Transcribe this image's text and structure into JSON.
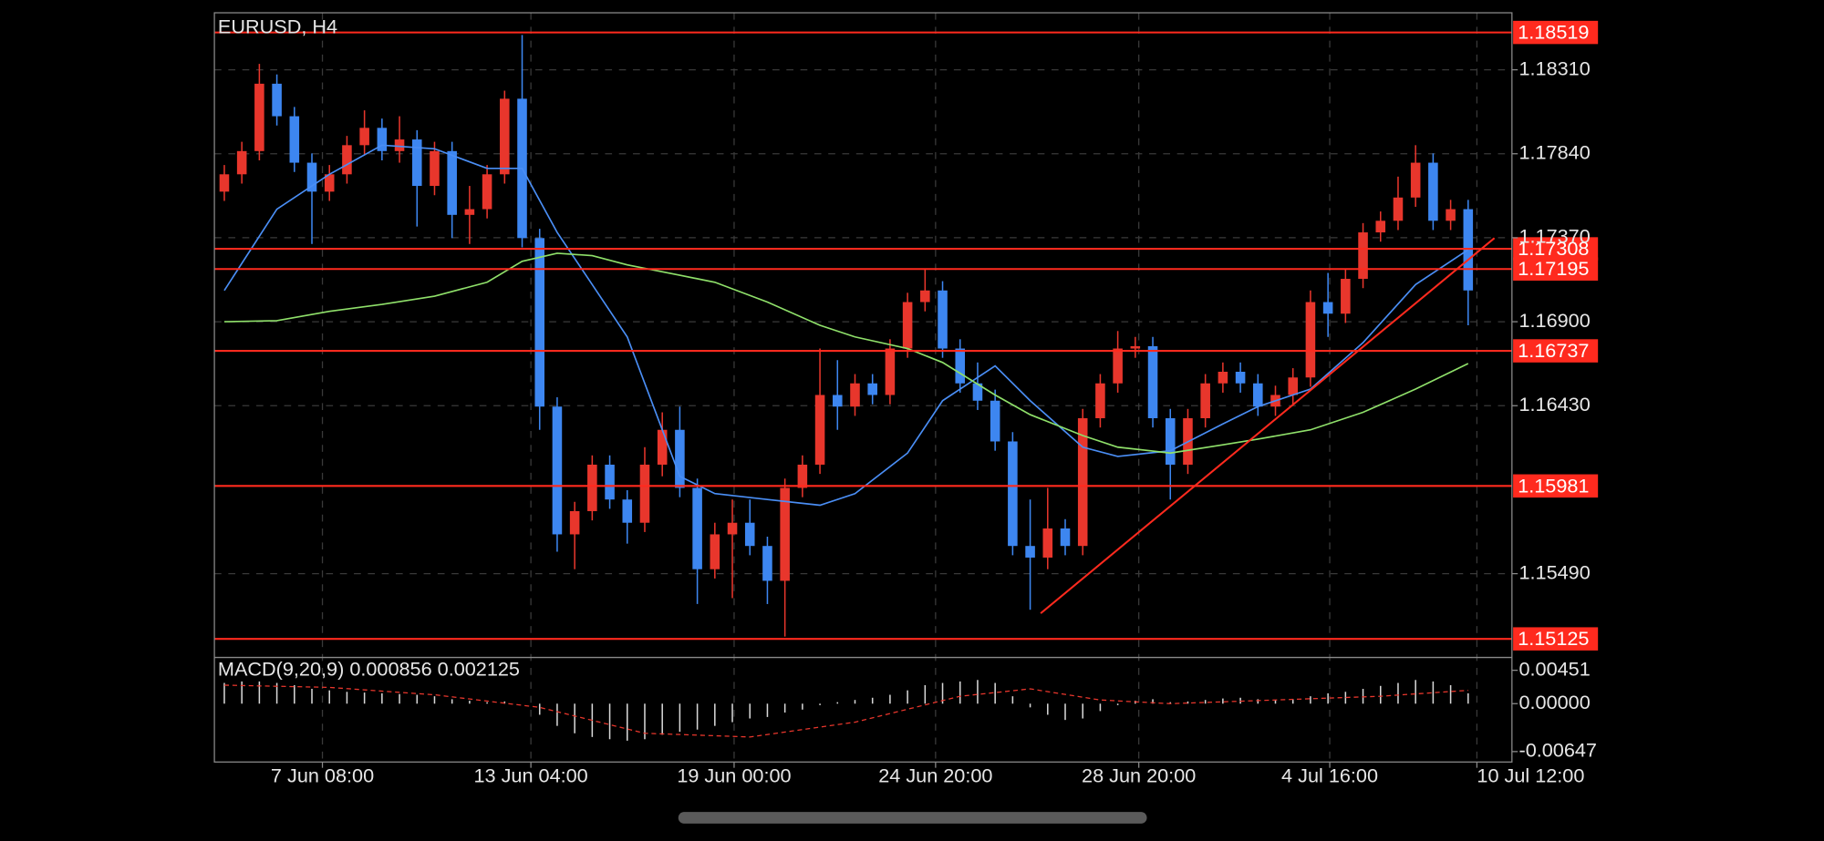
{
  "chart_data": {
    "type": "candlestick",
    "title": "EURUSD, H4",
    "up_color": "#e8362c",
    "down_color": "#3d86f0",
    "grid": true,
    "xlim": [
      -0.5,
      73.5
    ],
    "ylim": [
      1.15021,
      1.18629
    ],
    "yticks": [
      {
        "value": 1.1831,
        "label": "1.18310"
      },
      {
        "value": 1.1784,
        "label": "1.17840"
      },
      {
        "value": 1.1737,
        "label": "1.17370"
      },
      {
        "value": 1.169,
        "label": "1.16900"
      },
      {
        "value": 1.1643,
        "label": "1.16430"
      },
      {
        "value": 1.1549,
        "label": "1.15490"
      }
    ],
    "xticks": [
      {
        "value": 5.6,
        "label": "7 Jun 08:00"
      },
      {
        "value": 17.5,
        "label": "13 Jun 04:00"
      },
      {
        "value": 29.1,
        "label": "19 Jun 00:00"
      },
      {
        "value": 40.6,
        "label": "24 Jun 20:00"
      },
      {
        "value": 52.2,
        "label": "28 Jun 20:00"
      },
      {
        "value": 63.1,
        "label": "4 Jul 16:00"
      },
      {
        "value": 71.5,
        "label": "10 Jul 12:00"
      }
    ],
    "open": [
      1.17628,
      1.17725,
      1.17855,
      1.18232,
      1.1805,
      1.1779,
      1.17628,
      1.17725,
      1.17888,
      1.17985,
      1.17855,
      1.1792,
      1.1766,
      1.17855,
      1.17498,
      1.1753,
      1.17725,
      1.18148,
      1.17368,
      1.16425,
      1.1571,
      1.1584,
      1.161,
      1.15905,
      1.15775,
      1.161,
      1.16295,
      1.1597,
      1.15515,
      1.1571,
      1.15775,
      1.15645,
      1.1545,
      1.1597,
      1.161,
      1.1649,
      1.16425,
      1.16555,
      1.1649,
      1.1675,
      1.1701,
      1.17075,
      1.1675,
      1.16555,
      1.16458,
      1.1623,
      1.15645,
      1.1558,
      1.15743,
      1.15645,
      1.1636,
      1.16555,
      1.1675,
      1.16763,
      1.1636,
      1.161,
      1.1636,
      1.16555,
      1.1662,
      1.16555,
      1.16425,
      1.1649,
      1.16588,
      1.1701,
      1.16945,
      1.1714,
      1.174,
      1.17465,
      1.17595,
      1.1779,
      1.17465,
      1.1753
    ],
    "high": [
      1.17777,
      1.17907,
      1.18343,
      1.18284,
      1.18102,
      1.17842,
      1.17777,
      1.1794,
      1.18083,
      1.18037,
      1.1805,
      1.17972,
      1.17907,
      1.17907,
      1.1766,
      1.17777,
      1.18193,
      1.18505,
      1.1742,
      1.16477,
      1.15892,
      1.16152,
      1.16152,
      1.15957,
      1.16198,
      1.16393,
      1.16425,
      1.16022,
      1.15775,
      1.15905,
      1.15905,
      1.15697,
      1.16022,
      1.16152,
      1.1675,
      1.16685,
      1.16607,
      1.16607,
      1.16802,
      1.17062,
      1.17192,
      1.17127,
      1.16802,
      1.16672,
      1.1652,
      1.16282,
      1.15905,
      1.1597,
      1.15795,
      1.16412,
      1.16607,
      1.16848,
      1.16815,
      1.16815,
      1.16412,
      1.16412,
      1.16607,
      1.16672,
      1.16672,
      1.16607,
      1.16542,
      1.1664,
      1.17075,
      1.17173,
      1.17192,
      1.17452,
      1.17517,
      1.17712,
      1.17888,
      1.17842,
      1.17582,
      1.17582
    ],
    "low": [
      1.17576,
      1.17673,
      1.17803,
      1.17998,
      1.17738,
      1.17335,
      1.17576,
      1.17673,
      1.17836,
      1.17803,
      1.1779,
      1.17433,
      1.17608,
      1.17368,
      1.17335,
      1.17478,
      1.17673,
      1.17316,
      1.16295,
      1.15613,
      1.15515,
      1.15788,
      1.15853,
      1.15658,
      1.15723,
      1.16035,
      1.15918,
      1.1532,
      1.15463,
      1.15353,
      1.15593,
      1.1532,
      1.15138,
      1.15918,
      1.16048,
      1.16295,
      1.16373,
      1.16438,
      1.16438,
      1.16698,
      1.16958,
      1.16698,
      1.16503,
      1.16406,
      1.16178,
      1.15593,
      1.15288,
      1.15515,
      1.15593,
      1.15593,
      1.16308,
      1.16503,
      1.16698,
      1.16308,
      1.15905,
      1.16048,
      1.16308,
      1.16503,
      1.16503,
      1.16373,
      1.16373,
      1.16438,
      1.16536,
      1.16815,
      1.16893,
      1.17088,
      1.17348,
      1.17413,
      1.17543,
      1.17413,
      1.17413,
      1.1688
    ],
    "close": [
      1.17725,
      1.17855,
      1.18232,
      1.1805,
      1.1779,
      1.17628,
      1.17725,
      1.17888,
      1.17985,
      1.17855,
      1.1792,
      1.1766,
      1.17855,
      1.17498,
      1.1753,
      1.17725,
      1.18148,
      1.17368,
      1.16425,
      1.1571,
      1.1584,
      1.161,
      1.15905,
      1.15775,
      1.161,
      1.16295,
      1.1597,
      1.15515,
      1.1571,
      1.15775,
      1.15645,
      1.1545,
      1.1597,
      1.161,
      1.1649,
      1.16425,
      1.16555,
      1.1649,
      1.1675,
      1.1701,
      1.17075,
      1.1675,
      1.16555,
      1.16458,
      1.1623,
      1.15645,
      1.1558,
      1.15743,
      1.15645,
      1.1636,
      1.16555,
      1.1675,
      1.16763,
      1.1636,
      1.161,
      1.1636,
      1.16555,
      1.1662,
      1.16555,
      1.16425,
      1.1649,
      1.16588,
      1.1701,
      1.16945,
      1.1714,
      1.174,
      1.17465,
      1.17595,
      1.1779,
      1.17465,
      1.1753,
      1.17075
    ],
    "overlays": [
      {
        "color": "#4a8ef5",
        "x": [
          0,
          3,
          6,
          9,
          12,
          15,
          17,
          19,
          21,
          23,
          26,
          28,
          31,
          34,
          36,
          39,
          41,
          44,
          46,
          49,
          51,
          54,
          57,
          59,
          62,
          65,
          68,
          71
        ],
        "values": [
          1.17075,
          1.1753,
          1.17725,
          1.17888,
          1.17868,
          1.17758,
          1.17758,
          1.174,
          1.17108,
          1.16815,
          1.16035,
          1.15938,
          1.15905,
          1.15873,
          1.15938,
          1.16165,
          1.16458,
          1.16653,
          1.16458,
          1.16198,
          1.16146,
          1.16178,
          1.16328,
          1.16425,
          1.16523,
          1.16783,
          1.17108,
          1.17303
        ]
      },
      {
        "color": "#8fe06a",
        "x": [
          0,
          3,
          6,
          9,
          12,
          15,
          17,
          19,
          21,
          23,
          26,
          28,
          31,
          34,
          36,
          39,
          41,
          44,
          46,
          49,
          51,
          54,
          57,
          59,
          62,
          65,
          68,
          71
        ],
        "values": [
          1.169,
          1.16906,
          1.16958,
          1.16997,
          1.17043,
          1.17121,
          1.17238,
          1.17283,
          1.1727,
          1.17218,
          1.1716,
          1.17121,
          1.1701,
          1.1688,
          1.16815,
          1.1675,
          1.16672,
          1.1649,
          1.1638,
          1.16263,
          1.16198,
          1.16165,
          1.16211,
          1.16243,
          1.16295,
          1.16393,
          1.16523,
          1.16666
        ]
      }
    ],
    "trendline": {
      "color": "#ff2a1e",
      "x": [
        46.6,
        72.5
      ],
      "values": [
        1.15268,
        1.17368
      ]
    },
    "levels": {
      "color": "#ff2a1e",
      "values": [
        1.18519,
        1.17308,
        1.17195,
        1.16737,
        1.15981,
        1.15125
      ]
    },
    "macd": {
      "label": "MACD(9,20,9) 0.000856 0.002125",
      "y2lim": [
        -0.00788,
        0.00624
      ],
      "y2ticks": [
        {
          "value": 0.00451,
          "label": "0.00451"
        },
        {
          "value": 0,
          "label": "0.00000"
        },
        {
          "value": -0.00647,
          "label": "-0.00647"
        }
      ],
      "histogram": {
        "color": "#d8d8d8",
        "values": [
          0.0028,
          0.003,
          0.003,
          0.0028,
          0.0025,
          0.002,
          0.0018,
          0.0016,
          0.0015,
          0.0014,
          0.0013,
          0.0012,
          0.001,
          0.0006,
          0.0004,
          0.0002,
          0.0003,
          0,
          -0.0015,
          -0.003,
          -0.004,
          -0.0045,
          -0.0048,
          -0.005,
          -0.0048,
          -0.0042,
          -0.0038,
          -0.0035,
          -0.003,
          -0.0025,
          -0.002,
          -0.0018,
          -0.0012,
          -0.0008,
          -0.0002,
          0.0002,
          0.0005,
          0.0008,
          0.0012,
          0.0018,
          0.0025,
          0.0028,
          0.003,
          0.0032,
          0.0028,
          0.001,
          -0.0005,
          -0.0015,
          -0.0022,
          -0.002,
          -0.001,
          -0.0002,
          0.0004,
          0.0006,
          0.0002,
          0.0003,
          0.0005,
          0.0007,
          0.0008,
          0.0006,
          0.0005,
          0.0006,
          0.001,
          0.0014,
          0.0016,
          0.002,
          0.0024,
          0.0028,
          0.0032,
          0.003,
          0.0025,
          0.0014
        ]
      },
      "signal": {
        "color": "#e8362c",
        "x": [
          0,
          6,
          12,
          18,
          24,
          30,
          36,
          42,
          46,
          50,
          54,
          60,
          66,
          71
        ],
        "values": [
          0.0025,
          0.0022,
          0.0012,
          -0.0005,
          -0.004,
          -0.0045,
          -0.0025,
          0.001,
          0.002,
          0.0005,
          0,
          0.0005,
          0.001,
          0.0018
        ]
      }
    }
  }
}
